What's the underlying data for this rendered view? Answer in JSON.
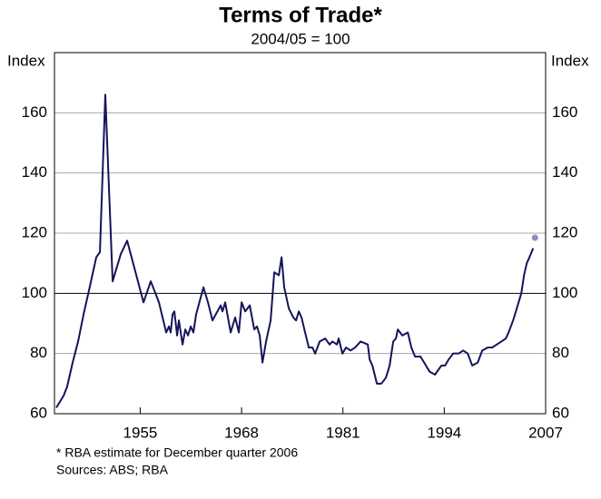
{
  "chart_data": {
    "type": "line",
    "title": "Terms of Trade*",
    "subtitle": "2004/05 = 100",
    "ylabel": "Index",
    "y2label": "Index",
    "footnote": "*   RBA estimate for December quarter 2006",
    "source": "Sources: ABS; RBA",
    "color": "#14145a",
    "xlim": [
      1944,
      2007
    ],
    "xticks": [
      1955,
      1968,
      1981,
      1994,
      2007
    ],
    "ylim": [
      60,
      180
    ],
    "yticks": [
      60,
      80,
      100,
      120,
      140,
      160
    ],
    "y2lim": [
      60,
      180
    ],
    "y2ticks": [
      60,
      80,
      100,
      120,
      140,
      160
    ],
    "grid": true,
    "reference_line": 100,
    "x": [
      1944.23,
      1945.17,
      1945.63,
      1946.33,
      1947.03,
      1947.73,
      1948.43,
      1949.36,
      1949.83,
      1950.52,
      1951.46,
      1952.5,
      1953.32,
      1955.42,
      1956.35,
      1957.4,
      1958.33,
      1958.68,
      1958.91,
      1959.15,
      1959.38,
      1959.73,
      1959.96,
      1960.43,
      1960.78,
      1961.13,
      1961.48,
      1961.82,
      1962.17,
      1963.11,
      1963.69,
      1964.27,
      1965.32,
      1965.55,
      1965.9,
      1966.25,
      1966.6,
      1967.18,
      1967.65,
      1968.0,
      1968.47,
      1969.05,
      1969.63,
      1969.98,
      1970.33,
      1970.68,
      1971.14,
      1971.73,
      1972.19,
      1972.78,
      1973.13,
      1973.47,
      1974.06,
      1974.64,
      1974.99,
      1975.34,
      1975.69,
      1976.15,
      1976.62,
      1977.09,
      1977.44,
      1978.02,
      1978.72,
      1979.3,
      1979.65,
      1980.23,
      1980.46,
      1980.93,
      1981.4,
      1981.98,
      1982.56,
      1983.26,
      1984.19,
      1984.43,
      1984.78,
      1985.36,
      1985.94,
      1986.52,
      1986.99,
      1987.45,
      1987.8,
      1988.04,
      1988.62,
      1989.32,
      1989.78,
      1990.25,
      1990.95,
      1991.42,
      1992.11,
      1992.81,
      1993.63,
      1994.1,
      1994.56,
      1995.14,
      1995.84,
      1996.43,
      1997.01,
      1997.59,
      1998.29,
      1998.87,
      1999.57,
      2000.15,
      2000.74,
      2001.32,
      2001.9,
      2002.25,
      2002.83,
      2003.42,
      2003.88,
      2004.23,
      2004.58,
      2004.93,
      2005.4
    ],
    "values": [
      62,
      66,
      69,
      77,
      84,
      93,
      101,
      112,
      113.7,
      166,
      104,
      113,
      117.5,
      97,
      104,
      97,
      87,
      89,
      87,
      93,
      94,
      86,
      91,
      83,
      88,
      86,
      89,
      87,
      93,
      102,
      97,
      91,
      96,
      94,
      97,
      92,
      87,
      92,
      87,
      97,
      94,
      96,
      88,
      89,
      86,
      77,
      84,
      91,
      107,
      106,
      112,
      102,
      95,
      92,
      91,
      94,
      92,
      87,
      82,
      82,
      80,
      84,
      85,
      83,
      84,
      83,
      85,
      80,
      82,
      81,
      82,
      84,
      83,
      78,
      76,
      70,
      70,
      72,
      76,
      84,
      85,
      88,
      86,
      87,
      82,
      79,
      79,
      77,
      74,
      73,
      76,
      76,
      78,
      80,
      80,
      81,
      80,
      76,
      77,
      81,
      82,
      82,
      83,
      84,
      85,
      87,
      91,
      96,
      100,
      106,
      110,
      112,
      115
    ],
    "estimate": {
      "x": 2005.63,
      "value": 118.5,
      "color": "#8e8ec4"
    }
  }
}
